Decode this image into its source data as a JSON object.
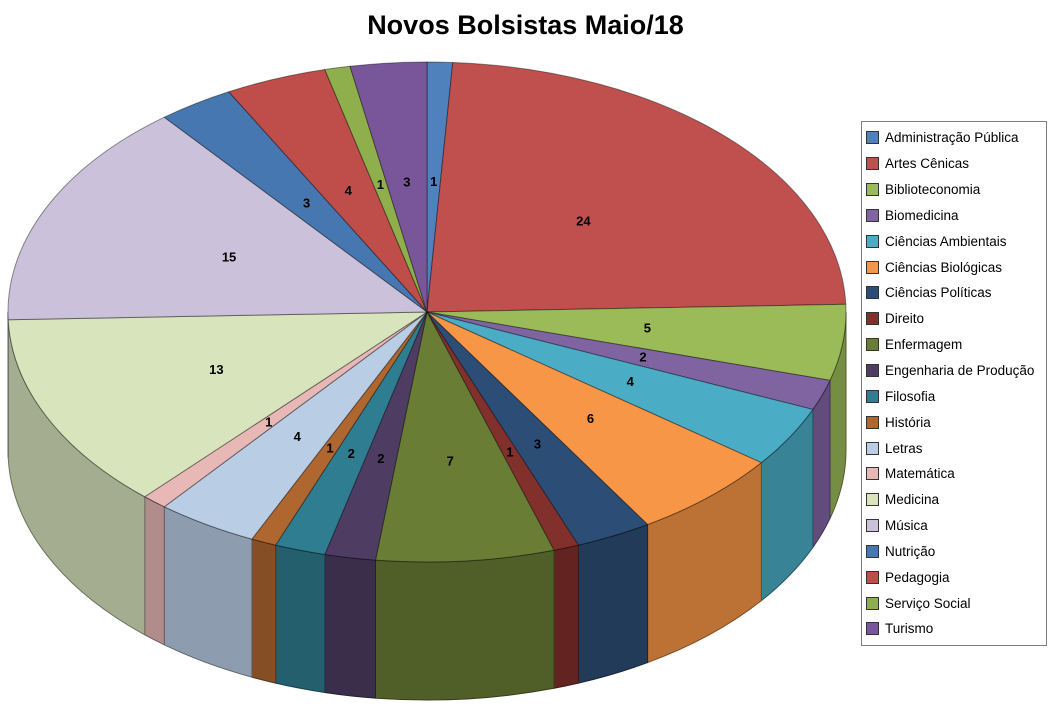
{
  "chart_data": {
    "type": "pie",
    "style": "3d-pie",
    "title": "Novos Bolsistas Maio/18",
    "legend_position": "right",
    "direction": "clockwise",
    "start_angle_deg": 0,
    "data_labels": "values",
    "total": 102,
    "categories": [
      "Administração Pública",
      "Artes Cênicas",
      "Biblioteconomia",
      "Biomedicina",
      "Ciências Ambientais",
      "Ciências Biológicas",
      "Ciências Políticas",
      "Direito",
      "Enfermagem",
      "Engenharia de Produção",
      "Filosofia",
      "História",
      "Letras",
      "Matemática",
      "Medicina",
      "Música",
      "Nutrição",
      "Pedagogia",
      "Serviço Social",
      "Turismo"
    ],
    "values": [
      1,
      24,
      5,
      2,
      4,
      6,
      3,
      1,
      7,
      2,
      2,
      1,
      4,
      1,
      13,
      15,
      3,
      4,
      1,
      3
    ],
    "colors": [
      "#4F81BD",
      "#C0504D",
      "#9BBB59",
      "#8064A2",
      "#4BACC6",
      "#F79646",
      "#2C4D75",
      "#82302C",
      "#697D35",
      "#4E3C63",
      "#2F7D91",
      "#B0672F",
      "#B9CDE5",
      "#E8B8B7",
      "#D8E4BC",
      "#CCC1DA",
      "#4777B1",
      "#BF4E4B",
      "#8FAF4C",
      "#79569A"
    ]
  },
  "colors": {
    "background": "#FFFFFF",
    "legend_border": "#7F7F7F",
    "title_text": "#000000",
    "label_text": "#000000"
  }
}
